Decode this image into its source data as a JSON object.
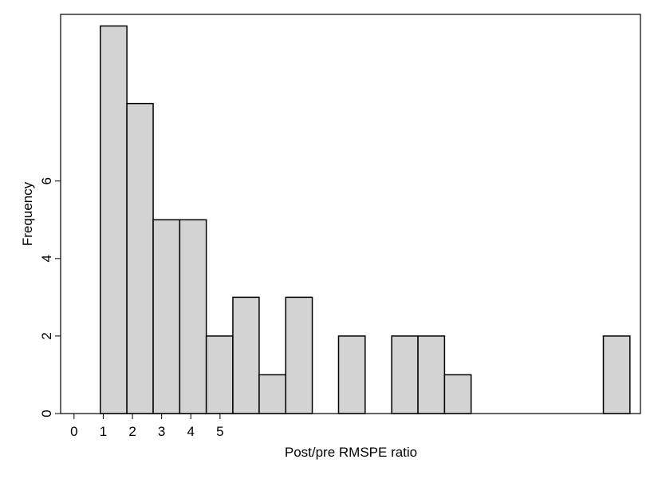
{
  "chart_data": {
    "type": "histogram",
    "x_label": "Post/pre RMSPE ratio",
    "y_label": "Frequency",
    "bins": [
      0.9,
      1.81,
      2.71,
      3.62,
      4.53,
      5.44,
      6.34,
      7.25,
      8.16,
      9.06,
      9.97,
      10.88,
      11.78,
      12.69,
      13.6,
      14.51,
      15.41,
      16.32,
      17.23,
      18.13,
      19.04
    ],
    "values": [
      10,
      8,
      5,
      5,
      2,
      3,
      1,
      3,
      0,
      2,
      0,
      2,
      2,
      1,
      0,
      0,
      0,
      0,
      0,
      2
    ],
    "color": "#d3d3d3",
    "xlim": [
      -0.46,
      19.4
    ],
    "xticks": [
      0,
      1,
      2,
      3,
      4,
      5
    ],
    "ylim": [
      0,
      10.3
    ],
    "yticks": [
      0,
      2,
      4,
      6
    ]
  }
}
